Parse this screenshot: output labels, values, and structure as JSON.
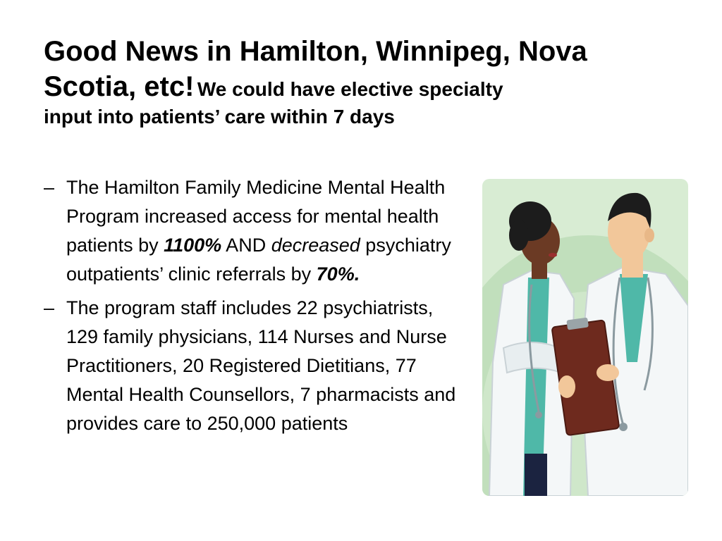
{
  "title": {
    "line_big_1": "Good News in Hamilton, Winnipeg, Nova",
    "line_big_2": "Scotia, etc!",
    "subtitle_part_1": "We could have elective specialty",
    "subtitle_part_2": "input into patients’ care  within 7 days"
  },
  "bullets": [
    {
      "dash": "–",
      "t1": "The Hamilton Family Medicine Mental Health Program increased access for mental health patients by ",
      "v1": "1100%",
      "t2": " AND ",
      "v2": "decreased",
      "t3": " psychiatry outpatients’ clinic referrals by ",
      "v3": "70%."
    },
    {
      "dash": "–",
      "text": "The program staff includes  22 psychiatrists, 129 family physicians, 114 Nurses and Nurse Practitioners,  20 Registered Dietitians,  77 Mental Health Counsellors, 7 pharmacists and provides care to 250,000 patients"
    }
  ],
  "image": {
    "icon": "doctors-with-clipboard-illustration",
    "colors": {
      "background": "#c9e3c4",
      "coat": "#f4f7f8",
      "scrubs": "#4fb8a8",
      "clipboard": "#6e2a1e",
      "skin_dark": "#6b3a24",
      "skin_light": "#f2c79a",
      "hair": "#1c1c1c"
    }
  }
}
